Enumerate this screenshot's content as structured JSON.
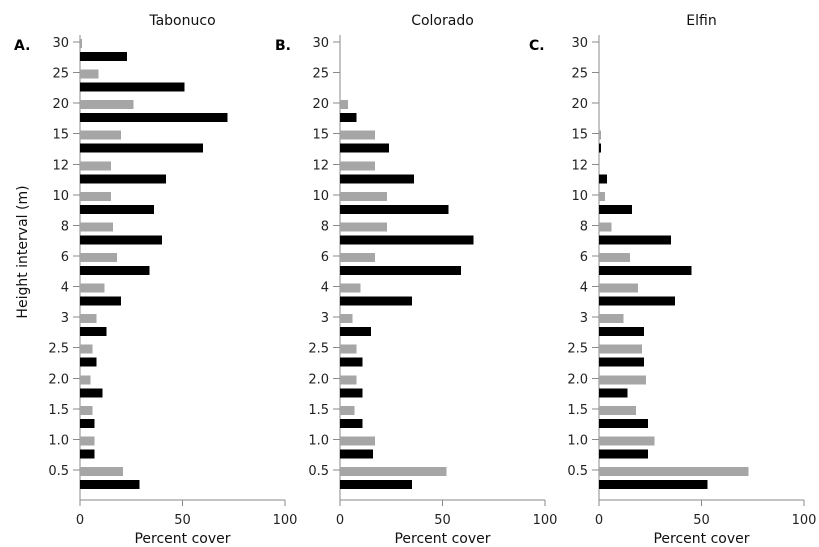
{
  "chart_data": [
    {
      "type": "bar",
      "horizontal": true,
      "panel_label": "A.",
      "title": "Tabonuco",
      "xlabel": "Percent cover",
      "ylabel": "Height interval (m)",
      "xlim": [
        0,
        100
      ],
      "xticks": [
        0,
        50,
        100
      ],
      "grid": false,
      "categories": [
        "0.5",
        "1.0",
        "1.5",
        "2.0",
        "2.5",
        "3",
        "4",
        "6",
        "8",
        "10",
        "12",
        "15",
        "20",
        "25",
        "30"
      ],
      "series": [
        {
          "color": "#a6a6a6",
          "values": [
            21,
            7,
            6,
            5,
            6,
            8,
            12,
            18,
            16,
            15,
            15,
            20,
            26,
            9,
            1
          ]
        },
        {
          "color": "#000000",
          "values": [
            29,
            7,
            7,
            11,
            8,
            13,
            20,
            34,
            40,
            36,
            42,
            60,
            72,
            51,
            23
          ]
        }
      ]
    },
    {
      "type": "bar",
      "horizontal": true,
      "panel_label": "B.",
      "title": "Colorado",
      "xlabel": "Percent cover",
      "xlim": [
        0,
        100
      ],
      "xticks": [
        0,
        50,
        100
      ],
      "grid": false,
      "categories": [
        "0.5",
        "1.0",
        "1.5",
        "2.0",
        "2.5",
        "3",
        "4",
        "6",
        "8",
        "10",
        "12",
        "15",
        "20",
        "25",
        "30"
      ],
      "series": [
        {
          "color": "#a6a6a6",
          "values": [
            52,
            17,
            7,
            8,
            8,
            6,
            10,
            17,
            23,
            23,
            17,
            17,
            4,
            0,
            0
          ]
        },
        {
          "color": "#000000",
          "values": [
            35,
            16,
            11,
            11,
            11,
            15,
            35,
            59,
            65,
            53,
            36,
            24,
            8,
            0,
            0
          ]
        }
      ]
    },
    {
      "type": "bar",
      "horizontal": true,
      "panel_label": "C.",
      "title": "Elfin",
      "xlabel": "Percent cover",
      "xlim": [
        0,
        100
      ],
      "xticks": [
        0,
        50,
        100
      ],
      "grid": false,
      "categories": [
        "0.5",
        "1.0",
        "1.5",
        "2.0",
        "2.5",
        "3",
        "4",
        "6",
        "8",
        "10",
        "12",
        "15",
        "20",
        "25",
        "30"
      ],
      "series": [
        {
          "color": "#a6a6a6",
          "values": [
            73,
            27,
            18,
            23,
            21,
            12,
            19,
            15,
            6,
            3,
            0,
            1,
            0,
            0,
            0
          ]
        },
        {
          "color": "#000000",
          "values": [
            53,
            24,
            24,
            14,
            22,
            22,
            37,
            45,
            35,
            16,
            4,
            1,
            0,
            0,
            0
          ]
        }
      ]
    }
  ]
}
